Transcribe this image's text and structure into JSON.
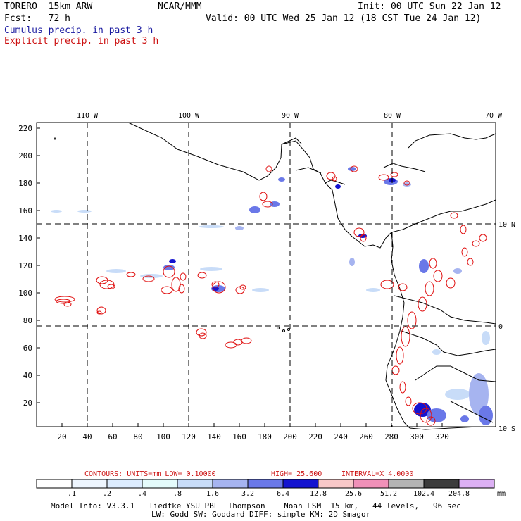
{
  "header": {
    "model": "TORERO  15km ARW",
    "center": "NCAR/MMM",
    "init": "Init: 00 UTC Sun 22 Jan 12",
    "fcst": "Fcst:   72 h",
    "valid": "Valid: 00 UTC Wed 25 Jan 12 (18 CST Tue 24 Jan 12)",
    "field1": "Cumulus precip. in past 3 h",
    "field2": "Explicit precip. in past 3 h"
  },
  "map": {
    "lon_labels": [
      "110 W",
      "100 W",
      "90 W",
      "80 W",
      "70 W"
    ],
    "lat_labels": [
      "10 N",
      "0",
      "10 S"
    ],
    "x_ticks": [
      "20",
      "40",
      "60",
      "80",
      "100",
      "120",
      "140",
      "160",
      "180",
      "200",
      "220",
      "240",
      "260",
      "280",
      "300",
      "320"
    ],
    "y_ticks": [
      "20",
      "40",
      "60",
      "80",
      "100",
      "120",
      "140",
      "160",
      "180",
      "200",
      "220"
    ],
    "colors": {
      "coast": "#000000",
      "grid": "#000000",
      "explicit_contour": "#e01010",
      "cumulus_light": "#c8dcf8",
      "cumulus_mid": "#6a78e8",
      "cumulus_dark": "#1414d0"
    }
  },
  "contour_info": {
    "label": "CONTOURS:  UNITS=mm  LOW= 0.10000",
    "high": "HIGH=  25.600",
    "interval": "INTERVAL=X  4.0000"
  },
  "colorbar": {
    "labels": [
      ".1",
      ".2",
      ".4",
      ".8",
      "1.6",
      "3.2",
      "6.4",
      "12.8",
      "25.6",
      "51.2",
      "102.4",
      "204.8"
    ],
    "units": "mm",
    "colors": [
      "#ffffff",
      "#eef6ff",
      "#dcecff",
      "#e4fbfb",
      "#c8dcf8",
      "#a6b4f0",
      "#6a78e8",
      "#1414d0",
      "#f8c8c8",
      "#f090b8",
      "#b4b4b4",
      "#3c3c3c",
      "#dcb0f4"
    ]
  },
  "footer": {
    "line1": "Model Info: V3.3.1   Tiedtke YSU PBL  Thompson    Noah LSM  15 km,   44 levels,   96 sec",
    "line2": "LW: Godd SW: Goddard DIFF: simple KM: 2D Smagor"
  }
}
